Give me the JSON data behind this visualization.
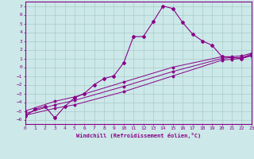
{
  "xlabel": "Windchill (Refroidissement éolien,°C)",
  "background_color": "#cce8e8",
  "grid_color": "#aacccc",
  "line_color": "#880088",
  "xlim": [
    0,
    23
  ],
  "ylim": [
    -6.5,
    7.5
  ],
  "xticks": [
    0,
    1,
    2,
    3,
    4,
    5,
    6,
    7,
    8,
    9,
    10,
    11,
    12,
    13,
    14,
    15,
    16,
    17,
    18,
    19,
    20,
    21,
    22,
    23
  ],
  "yticks": [
    -6,
    -5,
    -4,
    -3,
    -2,
    -1,
    0,
    1,
    2,
    3,
    4,
    5,
    6,
    7
  ],
  "series1_x": [
    0,
    1,
    2,
    3,
    4,
    5,
    6,
    7,
    8,
    9,
    10,
    11,
    12,
    13,
    14,
    15,
    16,
    17,
    18,
    19,
    20,
    21,
    22,
    23
  ],
  "series1_y": [
    -5.6,
    -4.8,
    -4.5,
    -5.8,
    -4.5,
    -3.5,
    -3.0,
    -2.0,
    -1.3,
    -1.0,
    0.5,
    3.5,
    3.5,
    5.2,
    7.0,
    6.7,
    5.1,
    3.8,
    3.0,
    2.5,
    1.2,
    1.1,
    1.0,
    1.3
  ],
  "series2_x": [
    0,
    3,
    5,
    10,
    15,
    20,
    21,
    22,
    23
  ],
  "series2_y": [
    -5.5,
    -4.7,
    -4.3,
    -2.8,
    -1.0,
    0.8,
    0.9,
    1.0,
    1.4
  ],
  "series3_x": [
    0,
    3,
    5,
    10,
    15,
    20,
    21,
    22,
    23
  ],
  "series3_y": [
    -5.3,
    -4.3,
    -3.8,
    -2.2,
    -0.5,
    1.0,
    1.1,
    1.1,
    1.5
  ],
  "series4_x": [
    0,
    3,
    5,
    10,
    15,
    20,
    21,
    22,
    23
  ],
  "series4_y": [
    -5.0,
    -3.9,
    -3.4,
    -1.7,
    0.0,
    1.2,
    1.2,
    1.3,
    1.6
  ]
}
